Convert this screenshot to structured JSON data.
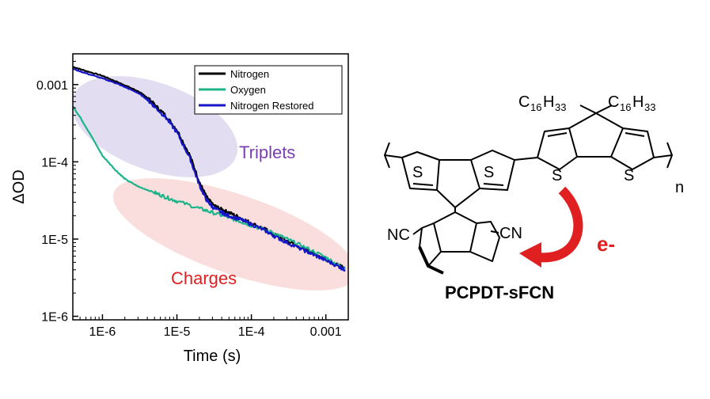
{
  "chart_data": {
    "type": "line",
    "xlabel": "Time (s)",
    "ylabel": "ΔOD",
    "xscale": "log",
    "yscale": "log",
    "xlim": [
      4e-07,
      0.002
    ],
    "ylim": [
      9e-07,
      0.0025
    ],
    "x_ticks": [
      {
        "value": 1e-06,
        "label": "1E-6"
      },
      {
        "value": 1e-05,
        "label": "1E-5"
      },
      {
        "value": 0.0001,
        "label": "1E-4"
      },
      {
        "value": 0.001,
        "label": "0.001"
      }
    ],
    "y_ticks": [
      {
        "value": 1e-06,
        "label": "1E-6"
      },
      {
        "value": 1e-05,
        "label": "1E-5"
      },
      {
        "value": 0.0001,
        "label": "1E-4"
      },
      {
        "value": 0.001,
        "label": "0.001"
      }
    ],
    "legend_position": "top-right",
    "series": [
      {
        "name": "Nitrogen",
        "color": "#000000",
        "x": [
          4e-07,
          6e-07,
          1e-06,
          1.5e-06,
          2e-06,
          3e-06,
          4e-06,
          5e-06,
          7e-06,
          1e-05,
          1.5e-05,
          2e-05,
          2.5e-05,
          3e-05,
          4e-05,
          5e-05,
          7e-05,
          0.0001,
          0.00015,
          0.0002,
          0.0003,
          0.0005,
          0.0007,
          0.001,
          0.0015,
          0.0018
        ],
        "y": [
          0.0017,
          0.0015,
          0.0013,
          0.0011,
          0.00098,
          0.00082,
          0.00068,
          0.00055,
          0.0004,
          0.00026,
          0.00012,
          5.5e-05,
          3.5e-05,
          2.8e-05,
          2.4e-05,
          2.2e-05,
          1.9e-05,
          1.6e-05,
          1.35e-05,
          1.15e-05,
          9.5e-06,
          7.5e-06,
          6.5e-06,
          5.5e-06,
          4.5e-06,
          4.2e-06
        ]
      },
      {
        "name": "Oxygen",
        "color": "#1db48a",
        "x": [
          4e-07,
          5e-07,
          7e-07,
          1e-06,
          1.5e-06,
          2e-06,
          3e-06,
          5e-06,
          7e-06,
          1e-05,
          2e-05,
          3e-05,
          5e-05,
          7e-05,
          0.0001,
          0.0002,
          0.0003,
          0.0005,
          0.001,
          0.0015,
          0.0018
        ],
        "y": [
          0.00052,
          0.00038,
          0.00022,
          0.00012,
          7.8e-05,
          6e-05,
          4.8e-05,
          4e-05,
          3.5e-05,
          3.1e-05,
          2.5e-05,
          2.2e-05,
          1.9e-05,
          1.7e-05,
          1.5e-05,
          1.2e-05,
          1e-05,
          8e-06,
          5.8e-06,
          4.5e-06,
          4.1e-06
        ]
      },
      {
        "name": "Nitrogen Restored",
        "color": "#1616c8",
        "x": [
          4e-07,
          6e-07,
          1e-06,
          1.5e-06,
          2e-06,
          3e-06,
          4e-06,
          5e-06,
          7e-06,
          1e-05,
          1.5e-05,
          2e-05,
          2.5e-05,
          3e-05,
          4e-05,
          5e-05,
          7e-05,
          0.0001,
          0.00015,
          0.0002,
          0.0003,
          0.0005,
          0.0007,
          0.001,
          0.0015,
          0.0018
        ],
        "y": [
          0.0016,
          0.0014,
          0.0012,
          0.00105,
          0.00093,
          0.00078,
          0.00064,
          0.00052,
          0.00038,
          0.00024,
          0.00011,
          5e-05,
          3.2e-05,
          2.6e-05,
          2.2e-05,
          2e-05,
          1.8e-05,
          1.55e-05,
          1.3e-05,
          1.1e-05,
          9e-06,
          7.2e-06,
          6.2e-06,
          5.3e-06,
          4.4e-06,
          4e-06
        ]
      }
    ],
    "annotations": [
      {
        "text": "Triplets",
        "color": "#7b3fb0"
      },
      {
        "text": "Charges",
        "color": "#e02020"
      }
    ]
  },
  "structure": {
    "sulfur": "S",
    "substituent_main": "C",
    "substituent_sub1": "16",
    "substituent_h": "H",
    "substituent_sub2": "33",
    "nitrile_left": "NC",
    "nitrile_right": "CN",
    "repeat": "n",
    "electron_label": "e-",
    "electron_color": "#e02020",
    "compound_name": "PCPDT-sFCN"
  }
}
